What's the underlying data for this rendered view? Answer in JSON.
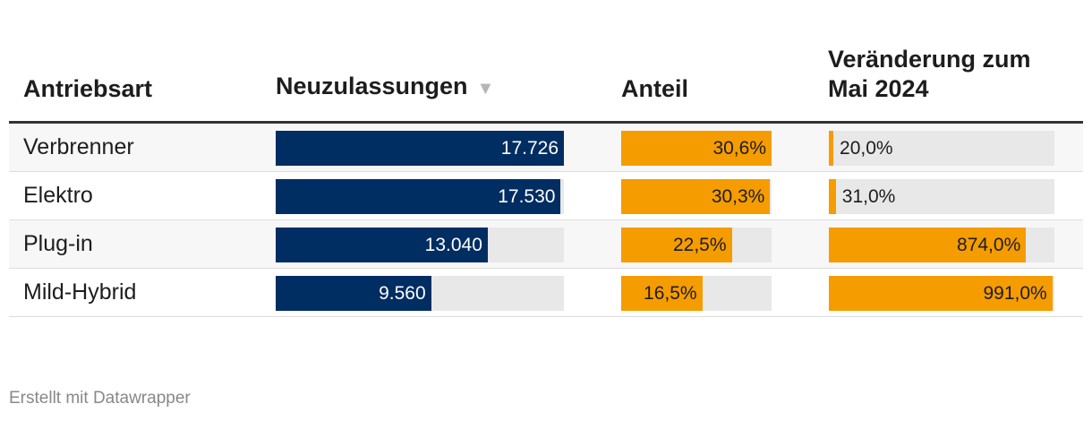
{
  "headers": {
    "name": "Antriebsart",
    "registrations": "Neuzulassungen",
    "sort_indicator": "▼",
    "share": "Anteil",
    "change_line1": "Veränderung zum",
    "change_line2": "Mai 2024"
  },
  "colors": {
    "registrations_bar": "#002d62",
    "share_bar": "#f59c00",
    "change_bar": "#f59c00",
    "track": "#e8e8e8"
  },
  "chart_data": {
    "type": "table",
    "columns": [
      "Antriebsart",
      "Neuzulassungen",
      "Anteil",
      "Veränderung zum Mai 2024"
    ],
    "rows": [
      {
        "name": "Verbrenner",
        "registrations": 17726,
        "registrations_label": "17.726",
        "share": 30.6,
        "share_label": "30,6%",
        "change": 20.0,
        "change_label": "20,0%"
      },
      {
        "name": "Elektro",
        "registrations": 17530,
        "registrations_label": "17.530",
        "share": 30.3,
        "share_label": "30,3%",
        "change": 31.0,
        "change_label": "31,0%"
      },
      {
        "name": "Plug-in",
        "registrations": 13040,
        "registrations_label": "13.040",
        "share": 22.5,
        "share_label": "22,5%",
        "change": 874.0,
        "change_label": "874,0%"
      },
      {
        "name": "Mild-Hybrid",
        "registrations": 9560,
        "registrations_label": "9.560",
        "share": 16.5,
        "share_label": "16,5%",
        "change": 991.0,
        "change_label": "991,0%"
      }
    ],
    "scales": {
      "registrations_max": 17726,
      "share_max": 30.6,
      "change_max": 1000
    }
  },
  "footer": "Erstellt mit Datawrapper"
}
